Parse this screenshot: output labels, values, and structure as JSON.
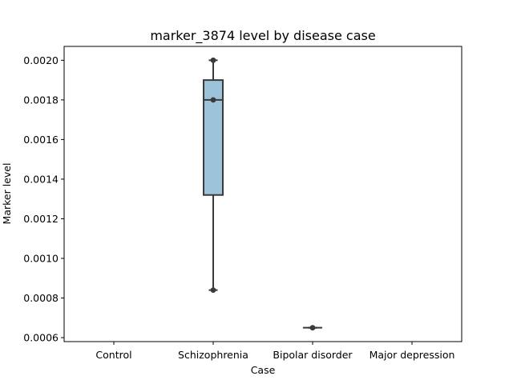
{
  "chart_data": {
    "type": "box",
    "title": "marker_3874 level by disease case",
    "xlabel": "Case",
    "ylabel": "Marker level",
    "categories": [
      "Control",
      "Schizophrenia",
      "Bipolar disorder",
      "Major depression"
    ],
    "ylim": [
      0.00058,
      0.00207
    ],
    "yticks": [
      0.0006,
      0.0008,
      0.001,
      0.0012,
      0.0014,
      0.0016,
      0.0018,
      0.002
    ],
    "ytick_labels": [
      "0.0006",
      "0.0008",
      "0.0010",
      "0.0012",
      "0.0014",
      "0.0016",
      "0.0018",
      "0.0020"
    ],
    "grid": false,
    "box_color": "#9bc3da",
    "edge_color": "#3a3a3a",
    "boxes": [
      null,
      {
        "min": 0.00084,
        "q1": 0.00132,
        "median": 0.0018,
        "q3": 0.0019,
        "max": 0.002,
        "points": [
          0.002,
          0.0018,
          0.00084
        ]
      },
      {
        "min": 0.00065,
        "q1": 0.00065,
        "median": 0.00065,
        "q3": 0.00065,
        "max": 0.00065,
        "points": [
          0.00065
        ]
      },
      null
    ]
  }
}
